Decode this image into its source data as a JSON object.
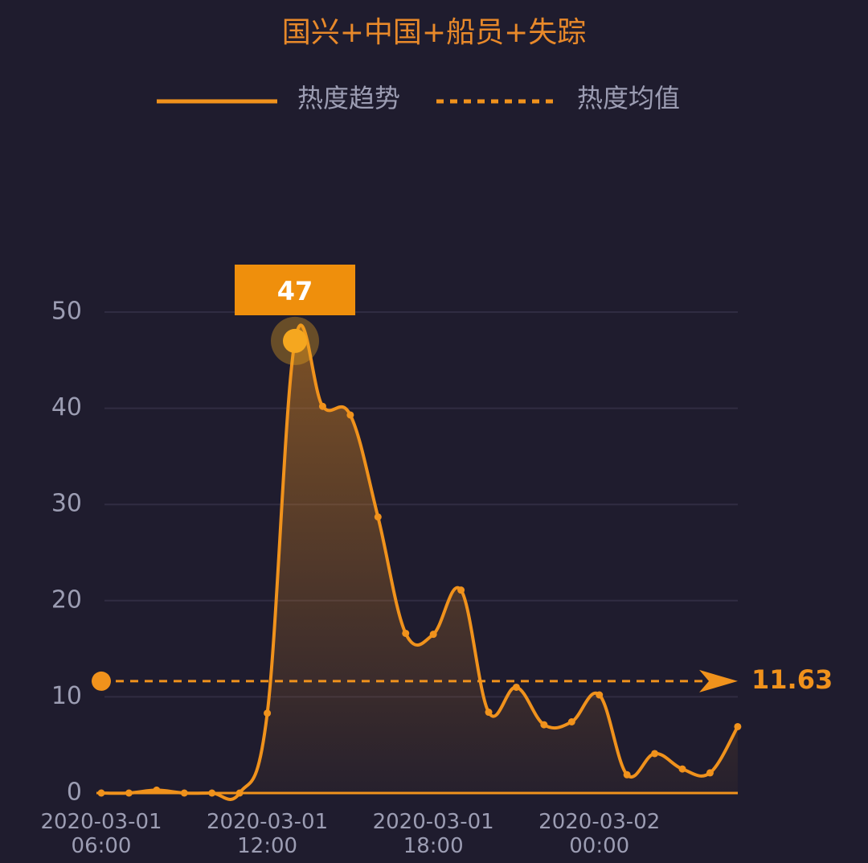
{
  "chart_data": {
    "type": "line",
    "title": "国兴+中国+船员+失踪",
    "categories": [
      "2020-03-01 06:00",
      null,
      null,
      null,
      null,
      null,
      "2020-03-01 12:00",
      null,
      null,
      null,
      null,
      null,
      "2020-03-01 18:00",
      null,
      null,
      null,
      null,
      null,
      "2020-03-02 00:00",
      null,
      null,
      null,
      null,
      null
    ],
    "series": [
      {
        "name": "热度趋势",
        "color": "#f0921c",
        "values": [
          0,
          0,
          0.3,
          0,
          0,
          0,
          8.3,
          47,
          40.2,
          39.3,
          28.7,
          16.6,
          16.5,
          21.1,
          8.4,
          11,
          7.1,
          7.4,
          10.2,
          1.9,
          4.1,
          2.5,
          2.1,
          6.9
        ]
      }
    ],
    "mean": {
      "name": "热度均值",
      "value": 11.63,
      "color": "#f0921c"
    },
    "peak_index": 7,
    "ylim": [
      0,
      50
    ],
    "yticks": [
      0,
      10,
      20,
      30,
      40,
      50
    ],
    "grid": true
  }
}
